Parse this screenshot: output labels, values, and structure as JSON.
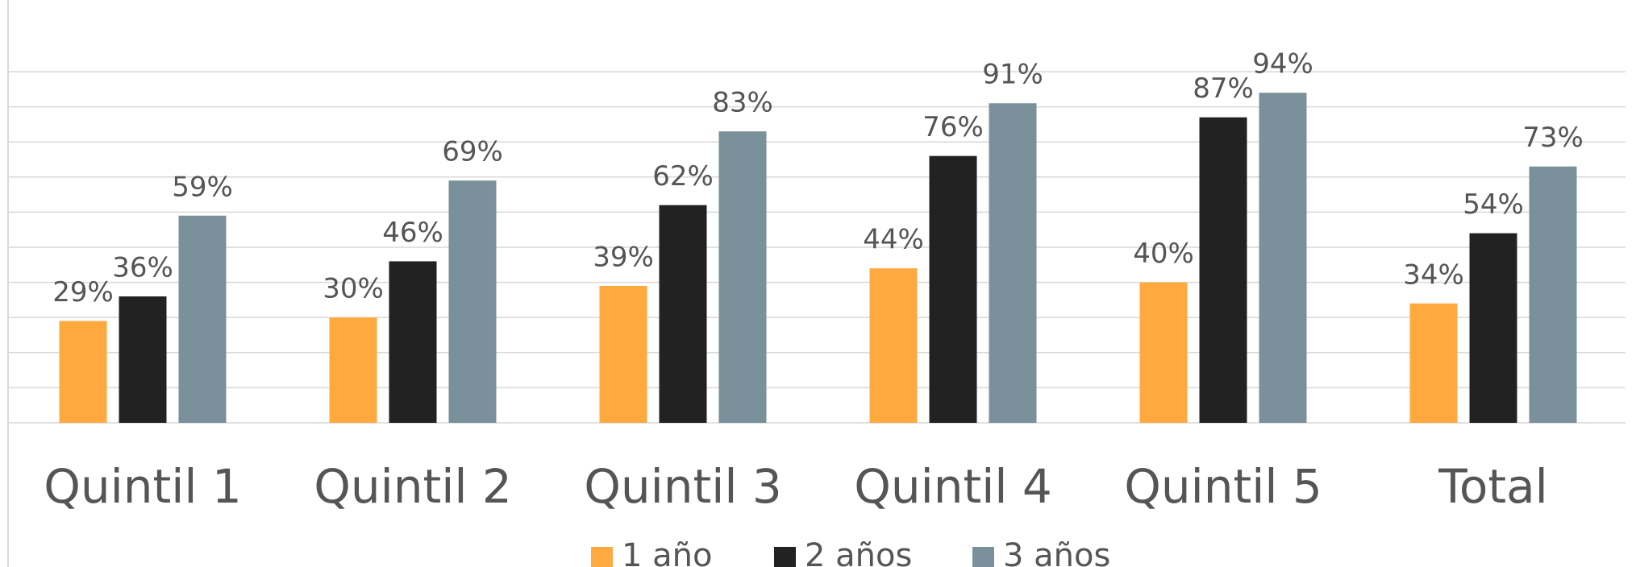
{
  "chart_data": {
    "type": "bar",
    "categories": [
      "Quintil 1",
      "Quintil 2",
      "Quintil 3",
      "Quintil 4",
      "Quintil 5",
      "Total"
    ],
    "series": [
      {
        "name": "1 año",
        "color": "#FFA93F",
        "values": [
          29,
          30,
          39,
          44,
          40,
          34
        ],
        "value_labels": [
          "29%",
          "30%",
          "39%",
          "44%",
          "40%",
          "34%"
        ]
      },
      {
        "name": "2 años",
        "color": "#222222",
        "values": [
          36,
          46,
          62,
          76,
          87,
          54
        ],
        "value_labels": [
          "36%",
          "46%",
          "62%",
          "76%",
          "87%",
          "54%"
        ]
      },
      {
        "name": "3 años",
        "color": "#7A909B",
        "values": [
          59,
          69,
          83,
          91,
          94,
          73
        ],
        "value_labels": [
          "59%",
          "69%",
          "83%",
          "91%",
          "94%",
          "73%"
        ]
      }
    ],
    "ylim": [
      0,
      100
    ],
    "yticks": [
      0,
      10,
      20,
      30,
      40,
      50,
      60,
      70,
      80,
      90,
      100
    ],
    "grid": true,
    "tick_labels": false,
    "legend": "bottom"
  }
}
